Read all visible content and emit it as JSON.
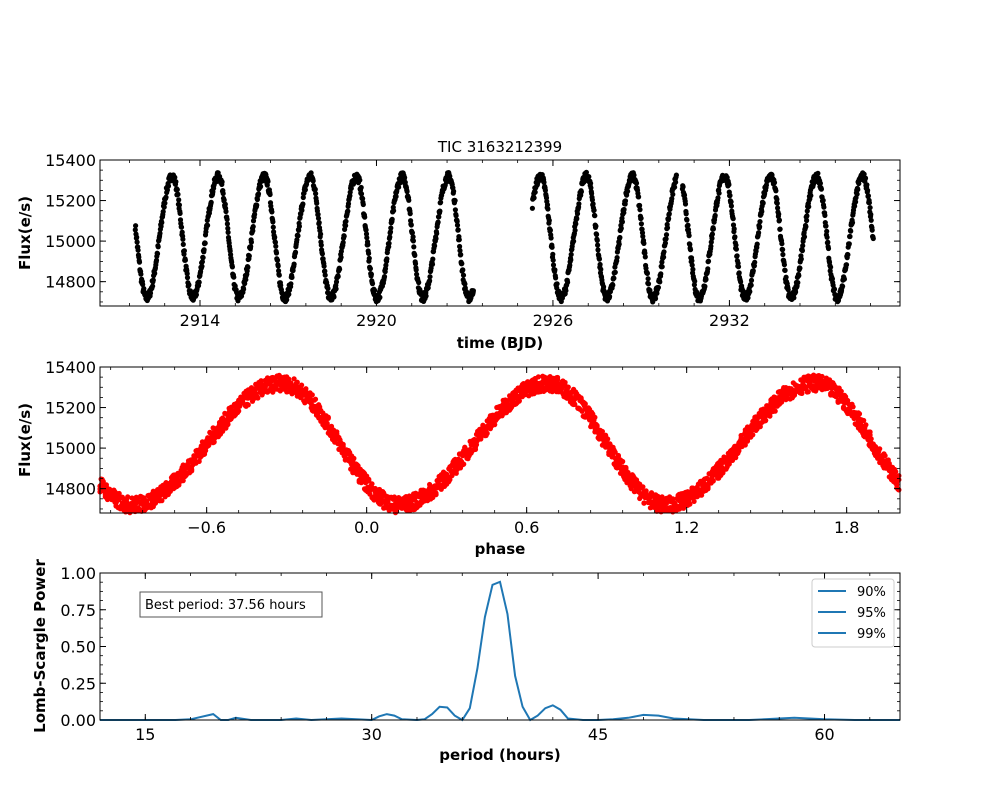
{
  "figure": {
    "title": "TIC 3163212399"
  },
  "colors": {
    "lightcurve": "#000000",
    "folded": "#ff0000",
    "periodogram": "#1f77b4",
    "axes": "#000000",
    "background": "#ffffff"
  },
  "chart_data": [
    {
      "type": "scatter",
      "panel": "light-curve",
      "title": "TIC 3163212399",
      "xlabel": "time (BJD)",
      "ylabel": "Flux(e/s)",
      "xlim": [
        2910.6,
        2937.8
      ],
      "ylim": [
        14680,
        15400
      ],
      "xticks": [
        2914,
        2920,
        2926,
        2932
      ],
      "xtick_labels": [
        "2914",
        "2920",
        "2926",
        "2932"
      ],
      "yticks": [
        14800,
        15000,
        15200,
        15400
      ],
      "ytick_labels": [
        "14800",
        "15000",
        "15200",
        "15400"
      ],
      "grid": false,
      "model": {
        "period_days": 1.565,
        "mean_flux": 15020,
        "amplitude_flux": 300,
        "minimum_time": 2913.75
      },
      "segments": [
        [
          2911.8,
          2923.3
        ],
        [
          2925.3,
          2930.2
        ],
        [
          2930.4,
          2936.9
        ]
      ]
    },
    {
      "type": "scatter",
      "panel": "phase-folded",
      "xlabel": "phase",
      "ylabel": "Flux(e/s)",
      "xlim": [
        -1.0,
        2.0
      ],
      "ylim": [
        14680,
        15400
      ],
      "xticks": [
        -0.6,
        0.0,
        0.6,
        1.2,
        1.8
      ],
      "xtick_labels": [
        "−0.6",
        "0.0",
        "0.6",
        "1.2",
        "1.8"
      ],
      "yticks": [
        14800,
        15000,
        15200,
        15400
      ],
      "ytick_labels": [
        "14800",
        "15000",
        "15200",
        "15400"
      ],
      "grid": false,
      "folded_minimum_phase": 0.12,
      "folded_maximum_phase": 0.68
    },
    {
      "type": "line",
      "panel": "periodogram",
      "xlabel": "period (hours)",
      "ylabel": "Lomb-Scargle Power",
      "xlim": [
        12,
        65
      ],
      "ylim": [
        0.0,
        1.0
      ],
      "xticks": [
        15,
        30,
        45,
        60
      ],
      "xtick_labels": [
        "15",
        "30",
        "45",
        "60"
      ],
      "yticks": [
        0.0,
        0.25,
        0.5,
        0.75,
        1.0
      ],
      "ytick_labels": [
        "0.00",
        "0.25",
        "0.50",
        "0.75",
        "1.00"
      ],
      "grid": false,
      "legend": {
        "placement": "top-right",
        "entries": [
          "90%",
          "95%",
          "99%"
        ]
      },
      "annotation": "Best period: 37.56 hours",
      "best_period_hours": 37.56,
      "x": [
        12,
        14,
        15,
        16,
        17,
        18,
        19.5,
        20,
        20.5,
        21,
        22,
        24,
        25,
        26,
        27,
        28,
        29,
        30,
        30.5,
        31,
        31.5,
        32,
        33,
        33.5,
        34,
        34.5,
        35,
        35.5,
        36,
        36.5,
        37,
        37.5,
        38,
        38.5,
        39,
        39.5,
        40,
        40.5,
        41,
        41.5,
        42,
        42.5,
        43,
        44,
        45,
        46,
        47,
        48,
        49,
        50,
        52,
        55,
        58,
        60,
        62,
        65
      ],
      "y": [
        0.0,
        0.0,
        0.0,
        0.0,
        0.0,
        0.005,
        0.04,
        0.0,
        0.0,
        0.015,
        0.0,
        0.0,
        0.01,
        0.0,
        0.005,
        0.01,
        0.005,
        0.0,
        0.025,
        0.04,
        0.03,
        0.005,
        0.0,
        0.005,
        0.04,
        0.09,
        0.085,
        0.03,
        0.0,
        0.08,
        0.35,
        0.7,
        0.92,
        0.94,
        0.72,
        0.3,
        0.09,
        0.0,
        0.03,
        0.08,
        0.1,
        0.07,
        0.01,
        0.0,
        0.0,
        0.005,
        0.015,
        0.035,
        0.03,
        0.01,
        0.0,
        0.0,
        0.015,
        0.005,
        0.0,
        0.0
      ]
    }
  ]
}
